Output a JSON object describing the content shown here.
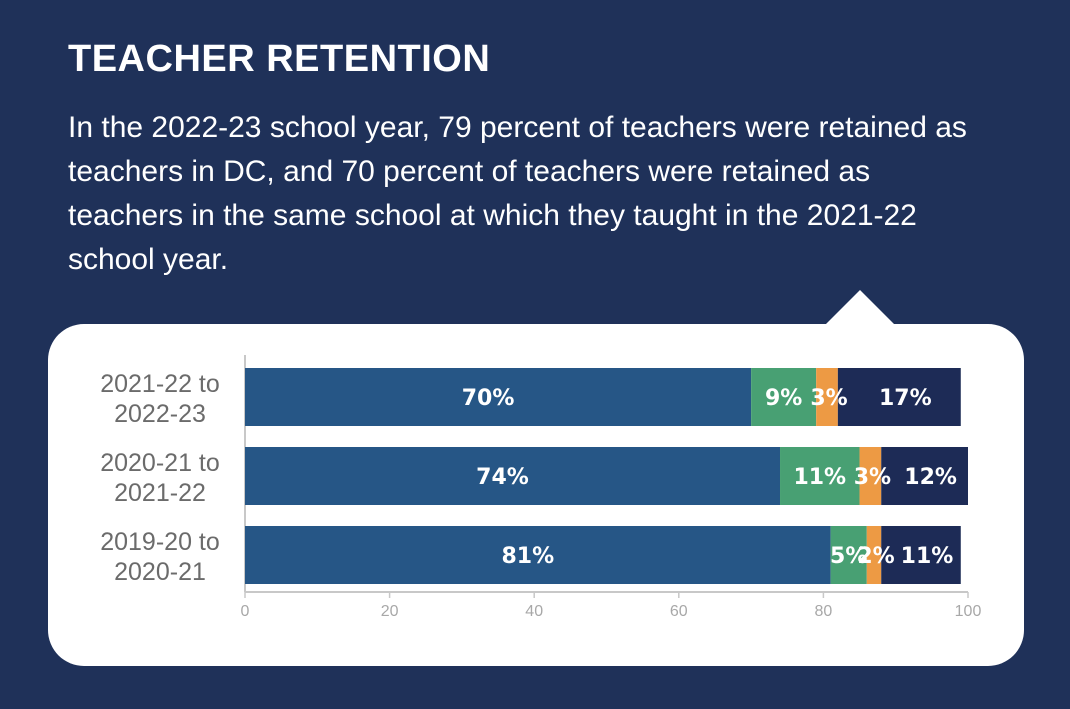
{
  "header": {
    "title": "TEACHER RETENTION",
    "description": "In the 2022-23 school year, 79 percent of teachers were retained as teachers in DC, and 70 percent of teachers were retained as teachers in the same school at which they taught in the 2021-22 school year."
  },
  "colors": {
    "background": "#1f3159",
    "bubble": "#ffffff",
    "segments": [
      "#265686",
      "#48a073",
      "#ed9a44",
      "#1d2b56"
    ]
  },
  "chart_data": {
    "type": "bar",
    "orientation": "horizontal",
    "stacked": true,
    "categories": [
      [
        "2021-22 to",
        "2022-23"
      ],
      [
        "2020-21 to",
        "2021-22"
      ],
      [
        "2019-20 to",
        "2020-21"
      ]
    ],
    "series": [
      {
        "values": [
          70,
          74,
          81
        ],
        "labels": [
          "70%",
          "74%",
          "81%"
        ],
        "color": "#265686"
      },
      {
        "values": [
          9,
          11,
          5
        ],
        "labels": [
          "9%",
          "11%",
          "5%"
        ],
        "color": "#48a073"
      },
      {
        "values": [
          3,
          3,
          2
        ],
        "labels": [
          "3%",
          "3%",
          "2%"
        ],
        "color": "#ed9a44"
      },
      {
        "values": [
          17,
          12,
          11
        ],
        "labels": [
          "17%",
          "12%",
          "11%"
        ],
        "color": "#1d2b56"
      }
    ],
    "xlim": [
      0,
      100
    ],
    "xticks": [
      0,
      20,
      40,
      60,
      80,
      100
    ],
    "xtick_labels": [
      "0",
      "20",
      "40",
      "60",
      "80",
      "100"
    ],
    "grid": false,
    "legend": "none"
  }
}
